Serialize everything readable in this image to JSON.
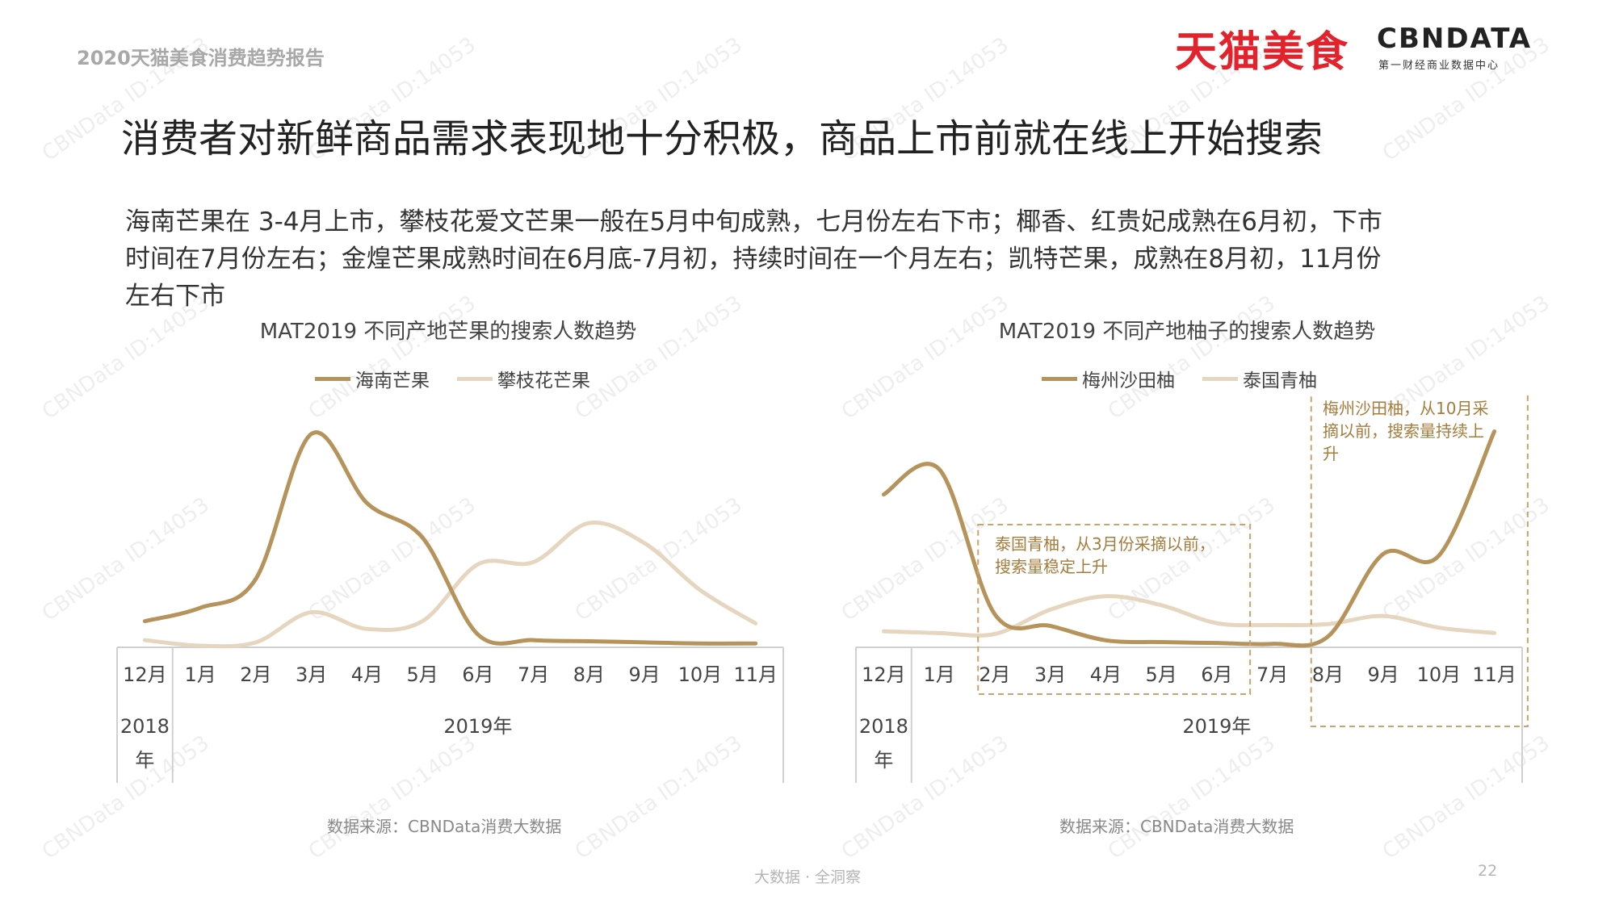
{
  "report_tag": "2020天猫美食消费趋势报告",
  "brand": {
    "tmall": "天猫美食",
    "cbn": "CBNDATA",
    "cbn_sub": "第一财经商业数据中心"
  },
  "title": "消费者对新鲜商品需求表现地十分积极，商品上市前就在线上开始搜索",
  "intro_lines": [
    "海南芒果在 3-4月上市，攀枝花爱文芒果一般在5月中旬成熟，七月份左右下市；椰香、红贵妃成熟在6月初，下市",
    "时间在7月份左右；金煌芒果成熟时间在6月底-7月初，持续时间在一个月左右；凯特芒果，成熟在8月初，11月份",
    "左右下市"
  ],
  "colors": {
    "series_dark": "#b5935a",
    "series_light": "#e6d6bf",
    "axis": "#d0d0d0",
    "callout": "#c9a46c"
  },
  "watermark": "CBNData ID:14053",
  "footer": "大数据 · 全洞察",
  "page_number": "22",
  "chart_data": [
    {
      "type": "line",
      "title": "MAT2019 不同产地芒果的搜索人数趋势",
      "x": [
        "12月",
        "1月",
        "2月",
        "3月",
        "4月",
        "5月",
        "6月",
        "7月",
        "8月",
        "9月",
        "10月",
        "11月"
      ],
      "year_groups": [
        {
          "label": "2018",
          "label2": "年",
          "span": 1
        },
        {
          "label": "2019年",
          "span": 11
        }
      ],
      "series": [
        {
          "name": "海南芒果",
          "color": "#b5935a",
          "values": [
            0.22,
            0.34,
            0.6,
            1.9,
            1.28,
            0.97,
            0.1,
            0.05,
            0.04,
            0.03,
            0.02,
            0.02
          ]
        },
        {
          "name": "攀枝花芒果",
          "color": "#e6d6bf",
          "values": [
            0.05,
            0.0,
            0.03,
            0.3,
            0.15,
            0.22,
            0.73,
            0.75,
            1.1,
            0.92,
            0.5,
            0.2
          ]
        }
      ],
      "ylim": [
        0,
        2.1
      ],
      "legend_position": "top",
      "grid": false,
      "source": "数据来源：CBNData消费大数据"
    },
    {
      "type": "line",
      "title": "MAT2019 不同产地柚子的搜索人数趋势",
      "x": [
        "12月",
        "1月",
        "2月",
        "3月",
        "4月",
        "5月",
        "6月",
        "7月",
        "8月",
        "9月",
        "10月",
        "11月"
      ],
      "year_groups": [
        {
          "label": "2018",
          "label2": "年",
          "span": 1
        },
        {
          "label": "2019年",
          "span": 11
        }
      ],
      "series": [
        {
          "name": "梅州沙田柚",
          "color": "#b5935a",
          "values": [
            1.68,
            1.96,
            0.35,
            0.22,
            0.06,
            0.04,
            0.03,
            0.02,
            0.1,
            1.02,
            1.0,
            2.38
          ]
        },
        {
          "name": "泰国青柚",
          "color": "#e6d6bf",
          "values": [
            0.16,
            0.14,
            0.13,
            0.4,
            0.55,
            0.45,
            0.25,
            0.23,
            0.24,
            0.33,
            0.2,
            0.14
          ]
        }
      ],
      "ylim": [
        0,
        2.6
      ],
      "legend_position": "top",
      "grid": false,
      "callouts": [
        {
          "text_lines": [
            "泰国青柚，从3月份采摘以前，",
            "搜索量稳定上升"
          ],
          "from": "2月",
          "to": "6月"
        },
        {
          "text_lines": [
            "梅州沙田柚，从10月采",
            "摘以前，搜索量持续上",
            "升"
          ],
          "from": "8月",
          "to": "11月"
        }
      ],
      "source": "数据来源：CBNData消费大数据"
    }
  ]
}
